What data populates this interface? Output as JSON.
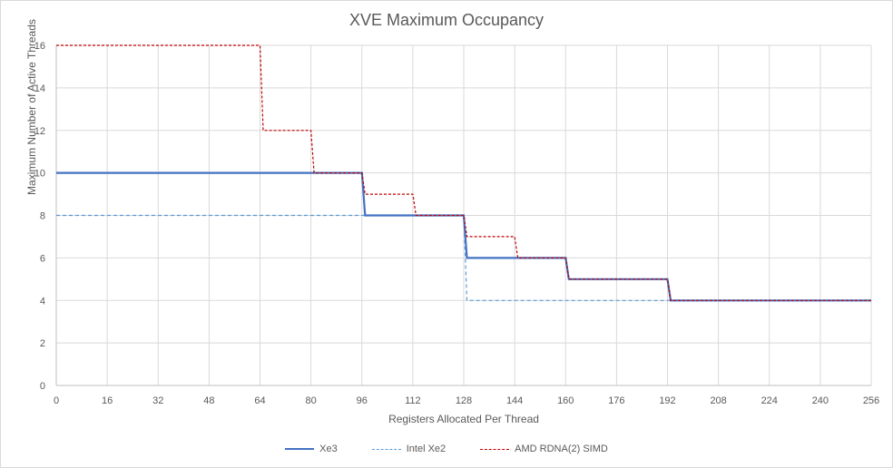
{
  "chart_data": {
    "type": "line",
    "title": "XVE Maximum Occupancy",
    "xlabel": "Registers Allocated Per Thread",
    "ylabel": "Maximum Number  of Active Threads",
    "xlim": [
      0,
      256
    ],
    "ylim": [
      0,
      16
    ],
    "x_ticks": [
      0,
      16,
      32,
      48,
      64,
      80,
      96,
      112,
      128,
      144,
      160,
      176,
      192,
      208,
      224,
      240,
      256
    ],
    "y_ticks": [
      0,
      2,
      4,
      6,
      8,
      10,
      12,
      14,
      16
    ],
    "grid": true,
    "legend": "bottom",
    "series": [
      {
        "name": "Xe3",
        "color": "#4472c4",
        "style": "solid",
        "points": [
          [
            0,
            10
          ],
          [
            96,
            10
          ],
          [
            97,
            8
          ],
          [
            128,
            8
          ],
          [
            129,
            6
          ],
          [
            160,
            6
          ],
          [
            161,
            5
          ],
          [
            192,
            5
          ],
          [
            193,
            4
          ],
          [
            256,
            4
          ]
        ]
      },
      {
        "name": "Intel Xe2",
        "color": "#5b9bd5",
        "style": "dashed",
        "points": [
          [
            0,
            8
          ],
          [
            128,
            8
          ],
          [
            129,
            4
          ],
          [
            256,
            4
          ]
        ]
      },
      {
        "name": "AMD RDNA(2) SIMD",
        "color": "#c00000",
        "style": "dashed",
        "points": [
          [
            0,
            16
          ],
          [
            64,
            16
          ],
          [
            65,
            12
          ],
          [
            80,
            12
          ],
          [
            81,
            10
          ],
          [
            96,
            10
          ],
          [
            97,
            9
          ],
          [
            112,
            9
          ],
          [
            113,
            8
          ],
          [
            128,
            8
          ],
          [
            129,
            7
          ],
          [
            144,
            7
          ],
          [
            145,
            6
          ],
          [
            160,
            6
          ],
          [
            161,
            5
          ],
          [
            192,
            5
          ],
          [
            193,
            4
          ],
          [
            256,
            4
          ]
        ]
      }
    ]
  }
}
